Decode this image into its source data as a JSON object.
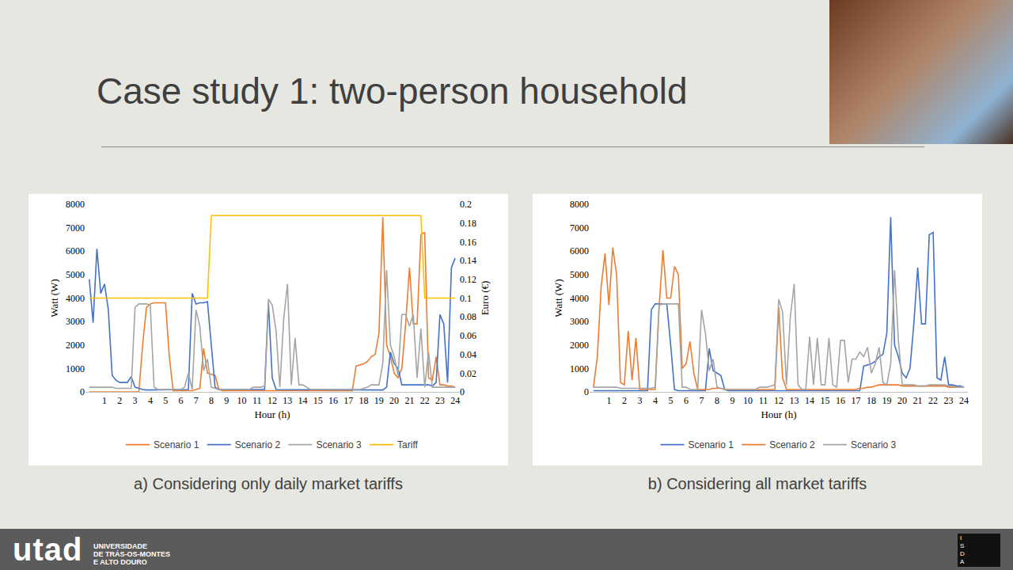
{
  "slide": {
    "title": "Case study 1: two-person household",
    "footer": {
      "logo": "utad",
      "institution": [
        "UNIVERSIDADE",
        "DE TRÁS-OS-MONTES",
        "E ALTO DOURO"
      ],
      "badge": "ISDA"
    }
  },
  "chart_data": [
    {
      "type": "line",
      "caption": "a) Considering only daily market tariffs",
      "x_label": "Hour (h)",
      "y_label": "Watt (W)",
      "y2_label": "Euro (€)",
      "x": [
        0,
        0.25,
        0.5,
        0.75,
        1,
        1.25,
        1.5,
        1.75,
        2,
        2.25,
        2.5,
        2.75,
        3,
        3.25,
        3.5,
        3.75,
        4,
        4.25,
        4.5,
        4.75,
        5,
        5.25,
        5.5,
        5.75,
        6,
        6.25,
        6.5,
        6.75,
        7,
        7.25,
        7.5,
        7.75,
        8,
        8.25,
        8.5,
        8.75,
        9,
        9.25,
        9.5,
        9.75,
        10,
        10.25,
        10.5,
        10.75,
        11,
        11.25,
        11.5,
        11.75,
        12,
        12.25,
        12.5,
        12.75,
        13,
        13.25,
        13.5,
        13.75,
        14,
        14.25,
        14.5,
        14.75,
        15,
        15.25,
        15.5,
        15.75,
        16,
        16.25,
        16.5,
        16.75,
        17,
        17.25,
        17.5,
        17.75,
        18,
        18.25,
        18.5,
        18.75,
        19,
        19.25,
        19.5,
        19.75,
        20,
        20.25,
        20.5,
        20.75,
        21,
        21.25,
        21.5,
        21.75,
        22,
        22.25,
        22.5,
        22.75,
        23,
        23.25,
        23.5,
        23.75,
        24
      ],
      "xlim": [
        -0.25,
        24.25
      ],
      "xticks": [
        1,
        2,
        3,
        4,
        5,
        6,
        7,
        8,
        9,
        10,
        11,
        12,
        13,
        14,
        15,
        16,
        17,
        18,
        19,
        20,
        21,
        22,
        23,
        24
      ],
      "ylim": [
        0,
        8000
      ],
      "yticks": [
        0,
        1000,
        2000,
        3000,
        4000,
        5000,
        6000,
        7000,
        8000
      ],
      "y2lim": [
        0,
        0.2
      ],
      "y2ticks": [
        0,
        0.02,
        0.04,
        0.06,
        0.08,
        0.1,
        0.12,
        0.14,
        0.16,
        0.18,
        0.2
      ],
      "grid": false,
      "legend": "bottom",
      "series": [
        {
          "name": "Scenario 1",
          "color": "#ed7d31",
          "values": [
            0,
            0,
            0,
            0,
            0,
            0,
            0,
            0,
            0,
            0,
            0,
            0,
            0,
            0,
            2000,
            3600,
            3750,
            3800,
            3800,
            3800,
            3800,
            1500,
            50,
            50,
            50,
            50,
            50,
            50,
            100,
            150,
            1850,
            800,
            750,
            700,
            100,
            50,
            50,
            50,
            50,
            50,
            50,
            50,
            50,
            50,
            50,
            50,
            50,
            50,
            50,
            50,
            50,
            50,
            50,
            50,
            50,
            50,
            50,
            50,
            50,
            50,
            50,
            50,
            50,
            50,
            50,
            50,
            50,
            50,
            50,
            50,
            1100,
            1150,
            1200,
            1300,
            1500,
            1600,
            2500,
            7450,
            2000,
            1500,
            800,
            600,
            1000,
            2900,
            5300,
            2900,
            2900,
            6700,
            6800,
            600,
            500,
            1500,
            300,
            300,
            250,
            250,
            200
          ]
        },
        {
          "name": "Scenario 2",
          "color": "#4472c4",
          "values": [
            4800,
            2950,
            6100,
            4200,
            4600,
            3500,
            700,
            500,
            400,
            400,
            400,
            650,
            200,
            150,
            100,
            80,
            80,
            80,
            80,
            80,
            80,
            80,
            80,
            80,
            80,
            80,
            100,
            4200,
            3750,
            3800,
            3800,
            3850,
            2000,
            200,
            100,
            100,
            100,
            100,
            100,
            100,
            100,
            100,
            100,
            100,
            100,
            100,
            100,
            3800,
            600,
            100,
            100,
            100,
            80,
            80,
            80,
            80,
            80,
            80,
            80,
            80,
            80,
            80,
            80,
            80,
            80,
            80,
            80,
            80,
            80,
            80,
            80,
            80,
            80,
            80,
            80,
            80,
            80,
            80,
            200,
            1700,
            1200,
            1000,
            300,
            300,
            300,
            300,
            300,
            300,
            300,
            300,
            250,
            400,
            3300,
            2900,
            400,
            5300,
            5700
          ]
        },
        {
          "name": "Scenario 3",
          "color": "#a5a5a5",
          "values": [
            200,
            200,
            180,
            200,
            200,
            180,
            200,
            150,
            150,
            150,
            150,
            150,
            3600,
            3750,
            3750,
            3750,
            3700,
            200,
            100,
            100,
            100,
            100,
            100,
            100,
            100,
            200,
            800,
            100,
            3500,
            2800,
            900,
            1400,
            200,
            150,
            100,
            100,
            100,
            100,
            100,
            100,
            100,
            100,
            100,
            200,
            200,
            200,
            250,
            3950,
            3700,
            2600,
            200,
            3100,
            4600,
            300,
            2300,
            300,
            300,
            200,
            100,
            100,
            100,
            100,
            100,
            100,
            100,
            100,
            100,
            100,
            100,
            100,
            100,
            100,
            150,
            200,
            300,
            300,
            300,
            1200,
            5200,
            2000,
            1500,
            700,
            3300,
            3300,
            2800,
            3300,
            600,
            2700,
            200,
            1700,
            200,
            200,
            200,
            200,
            200,
            200,
            200
          ]
        },
        {
          "name": "Tariff",
          "color": "#ffc000",
          "axis": "y2",
          "values": [
            0.1,
            0.1,
            0.1,
            0.1,
            0.1,
            0.1,
            0.1,
            0.1,
            0.1,
            0.1,
            0.1,
            0.1,
            0.1,
            0.1,
            0.1,
            0.1,
            0.1,
            0.1,
            0.1,
            0.1,
            0.1,
            0.1,
            0.1,
            0.1,
            0.1,
            0.1,
            0.1,
            0.1,
            0.1,
            0.1,
            0.1,
            0.1,
            0.188,
            0.188,
            0.188,
            0.188,
            0.188,
            0.188,
            0.188,
            0.188,
            0.188,
            0.188,
            0.188,
            0.188,
            0.188,
            0.188,
            0.188,
            0.188,
            0.188,
            0.188,
            0.188,
            0.188,
            0.188,
            0.188,
            0.188,
            0.188,
            0.188,
            0.188,
            0.188,
            0.188,
            0.188,
            0.188,
            0.188,
            0.188,
            0.188,
            0.188,
            0.188,
            0.188,
            0.188,
            0.188,
            0.188,
            0.188,
            0.188,
            0.188,
            0.188,
            0.188,
            0.188,
            0.188,
            0.188,
            0.188,
            0.188,
            0.188,
            0.188,
            0.188,
            0.188,
            0.188,
            0.188,
            0.188,
            0.1,
            0.1,
            0.1,
            0.1,
            0.1,
            0.1,
            0.1,
            0.1,
            0.1
          ]
        }
      ]
    },
    {
      "type": "line",
      "caption": "b) Considering all market tariffs",
      "x_label": "Hour (h)",
      "y_label": "Watt (W)",
      "x": [
        0,
        0.25,
        0.5,
        0.75,
        1,
        1.25,
        1.5,
        1.75,
        2,
        2.25,
        2.5,
        2.75,
        3,
        3.25,
        3.5,
        3.75,
        4,
        4.25,
        4.5,
        4.75,
        5,
        5.25,
        5.5,
        5.75,
        6,
        6.25,
        6.5,
        6.75,
        7,
        7.25,
        7.5,
        7.75,
        8,
        8.25,
        8.5,
        8.75,
        9,
        9.25,
        9.5,
        9.75,
        10,
        10.25,
        10.5,
        10.75,
        11,
        11.25,
        11.5,
        11.75,
        12,
        12.25,
        12.5,
        12.75,
        13,
        13.25,
        13.5,
        13.75,
        14,
        14.25,
        14.5,
        14.75,
        15,
        15.25,
        15.5,
        15.75,
        16,
        16.25,
        16.5,
        16.75,
        17,
        17.25,
        17.5,
        17.75,
        18,
        18.25,
        18.5,
        18.75,
        19,
        19.25,
        19.5,
        19.75,
        20,
        20.25,
        20.5,
        20.75,
        21,
        21.25,
        21.5,
        21.75,
        22,
        22.25,
        22.5,
        22.75,
        23,
        23.25,
        23.5,
        23.75,
        24
      ],
      "xlim": [
        -0.25,
        24.25
      ],
      "xticks": [
        1,
        2,
        3,
        4,
        5,
        6,
        7,
        8,
        9,
        10,
        11,
        12,
        13,
        14,
        15,
        16,
        17,
        18,
        19,
        20,
        21,
        22,
        23,
        24
      ],
      "ylim": [
        0,
        8000
      ],
      "yticks": [
        0,
        1000,
        2000,
        3000,
        4000,
        5000,
        6000,
        7000,
        8000
      ],
      "grid": false,
      "legend": "bottom",
      "series": [
        {
          "name": "Scenario 1",
          "color": "#4472c4",
          "values": [
            50,
            50,
            50,
            50,
            50,
            50,
            50,
            50,
            50,
            50,
            50,
            50,
            50,
            50,
            50,
            3500,
            3750,
            3750,
            3750,
            3750,
            2000,
            100,
            50,
            50,
            50,
            50,
            50,
            50,
            50,
            50,
            1850,
            900,
            800,
            700,
            100,
            50,
            50,
            50,
            50,
            50,
            50,
            50,
            50,
            50,
            50,
            50,
            50,
            50,
            50,
            50,
            50,
            50,
            50,
            50,
            50,
            50,
            50,
            50,
            50,
            50,
            50,
            50,
            50,
            50,
            50,
            50,
            50,
            50,
            50,
            50,
            1100,
            1150,
            1200,
            1300,
            1500,
            1600,
            2500,
            7450,
            2000,
            1500,
            800,
            600,
            1000,
            2900,
            5300,
            2900,
            2900,
            6700,
            6800,
            600,
            500,
            1500,
            300,
            300,
            250,
            250,
            200
          ]
        },
        {
          "name": "Scenario 2",
          "color": "#ed7d31",
          "values": [
            200,
            1500,
            4500,
            5900,
            3700,
            6150,
            5000,
            400,
            300,
            2600,
            500,
            2300,
            100,
            100,
            100,
            100,
            100,
            3600,
            6050,
            4000,
            4000,
            5350,
            5000,
            1000,
            1200,
            2150,
            800,
            100,
            100,
            100,
            100,
            150,
            150,
            150,
            100,
            100,
            100,
            100,
            100,
            100,
            100,
            100,
            100,
            100,
            100,
            100,
            100,
            100,
            3600,
            600,
            100,
            100,
            100,
            100,
            100,
            100,
            100,
            100,
            100,
            100,
            100,
            100,
            100,
            100,
            100,
            100,
            100,
            100,
            100,
            150,
            150,
            200,
            200,
            250,
            300,
            300,
            300,
            300,
            300,
            300,
            250,
            250,
            250,
            250,
            250,
            250,
            250,
            250,
            250,
            250,
            250,
            250,
            200,
            200,
            200,
            200,
            200
          ]
        },
        {
          "name": "Scenario 3",
          "color": "#a5a5a5",
          "values": [
            200,
            200,
            180,
            200,
            200,
            180,
            200,
            150,
            150,
            150,
            150,
            150,
            150,
            150,
            150,
            150,
            200,
            3700,
            3750,
            3750,
            3750,
            3750,
            3750,
            200,
            200,
            100,
            100,
            100,
            3500,
            2500,
            900,
            1400,
            200,
            150,
            100,
            100,
            100,
            100,
            100,
            100,
            100,
            100,
            100,
            200,
            200,
            200,
            250,
            300,
            3950,
            3400,
            300,
            3200,
            4600,
            300,
            100,
            100,
            2350,
            300,
            2300,
            300,
            300,
            2300,
            300,
            200,
            2200,
            2200,
            400,
            1400,
            1400,
            1700,
            1500,
            1900,
            800,
            1200,
            1900,
            400,
            300,
            1200,
            5200,
            2200,
            300,
            300,
            300,
            300,
            250,
            250,
            250,
            300,
            300,
            300,
            300,
            300,
            250,
            250,
            200,
            200,
            200
          ]
        }
      ]
    }
  ]
}
